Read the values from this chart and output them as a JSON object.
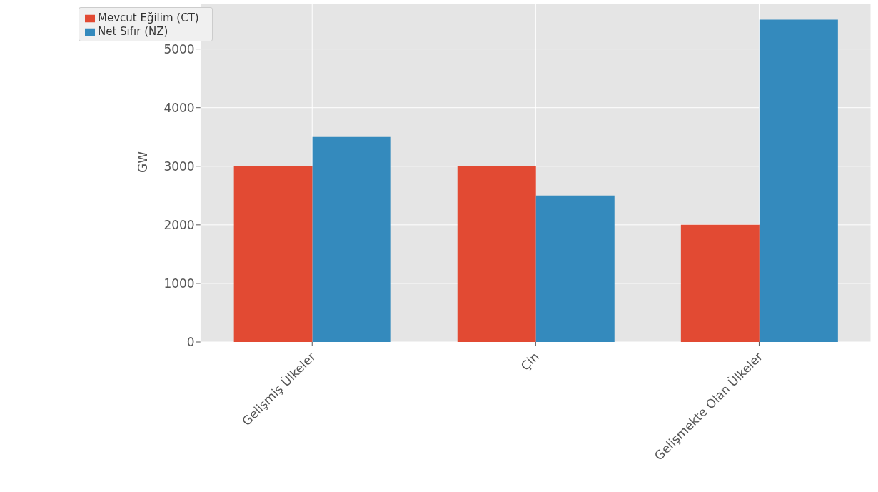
{
  "chart_data": {
    "type": "bar",
    "ylabel": "GW",
    "categories": [
      "Gelişmiş Ülkeler",
      "Çin",
      "Gelişmekte Olan Ülkeler"
    ],
    "series": [
      {
        "name": "Mevcut Eğilim (CT)",
        "color": "#e24a33",
        "values": [
          3000,
          3000,
          2000
        ]
      },
      {
        "name": "Net Sıfır (NZ)",
        "color": "#348abd",
        "values": [
          3500,
          2500,
          5500
        ]
      }
    ],
    "ylim": [
      0,
      5775
    ],
    "yticks": [
      0,
      1000,
      2000,
      3000,
      4000,
      5000
    ],
    "grid": true,
    "legend": "top left"
  }
}
